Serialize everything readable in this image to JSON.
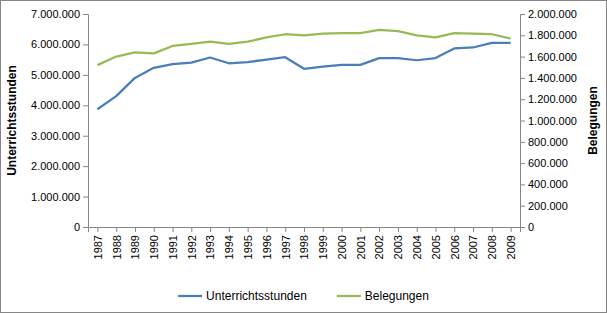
{
  "chart_data": {
    "type": "line",
    "y_label": "Unterrichtsstunden",
    "y2_label": "Belegungen",
    "categories": [
      "1987",
      "1988",
      "1989",
      "1990",
      "1991",
      "1992",
      "1993",
      "1994",
      "1995",
      "1996",
      "1997",
      "1998",
      "1999",
      "2000",
      "2001",
      "2002",
      "2003",
      "2004",
      "2005",
      "2006",
      "2007",
      "2008",
      "2009"
    ],
    "series": [
      {
        "name": "Unterrichtsstunden",
        "color": "#4a7ebb",
        "axis": "y",
        "values": [
          3870000,
          4300000,
          4900000,
          5230000,
          5350000,
          5400000,
          5570000,
          5380000,
          5420000,
          5500000,
          5580000,
          5200000,
          5270000,
          5330000,
          5330000,
          5550000,
          5550000,
          5480000,
          5550000,
          5870000,
          5900000,
          6050000,
          6050000
        ]
      },
      {
        "name": "Belegungen",
        "color": "#98b954",
        "axis": "y2",
        "values": [
          1520000,
          1600000,
          1640000,
          1630000,
          1700000,
          1720000,
          1740000,
          1720000,
          1740000,
          1780000,
          1810000,
          1800000,
          1815000,
          1820000,
          1820000,
          1850000,
          1840000,
          1800000,
          1780000,
          1820000,
          1815000,
          1810000,
          1770000
        ]
      }
    ],
    "ylim": [
      0,
      7000000
    ],
    "yticks": [
      0,
      {
        "value": 1000000,
        "label": "1.000.000"
      },
      {
        "value": 2000000,
        "label": "2.000.000"
      },
      {
        "value": 3000000,
        "label": "3.000.000"
      },
      {
        "value": 4000000,
        "label": "4.000.000"
      },
      {
        "value": 5000000,
        "label": "5.000.000"
      },
      {
        "value": 6000000,
        "label": "6.000.000"
      },
      {
        "value": 7000000,
        "label": "7.000.000"
      }
    ],
    "y2lim": [
      0,
      2000000
    ],
    "y2ticks": [
      0,
      {
        "value": 200000,
        "label": "200.000"
      },
      {
        "value": 400000,
        "label": "400.000"
      },
      {
        "value": 600000,
        "label": "600.000"
      },
      {
        "value": 800000,
        "label": "800.000"
      },
      {
        "value": 1000000,
        "label": "1.000.000"
      },
      {
        "value": 1200000,
        "label": "1.200.000"
      },
      {
        "value": 1400000,
        "label": "1.400.000"
      },
      {
        "value": 1600000,
        "label": "1.600.000"
      },
      {
        "value": 1800000,
        "label": "1.800.000"
      },
      {
        "value": 2000000,
        "label": "2.000.000"
      }
    ],
    "grid": false,
    "legend": "bottom"
  }
}
